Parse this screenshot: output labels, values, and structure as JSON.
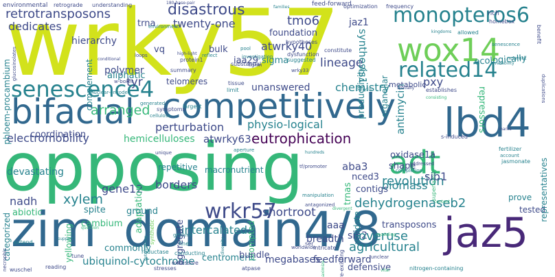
{
  "palette": {
    "c1": "#440154",
    "c2": "#482878",
    "c3": "#3e4a89",
    "c4": "#31688e",
    "c5": "#26828e",
    "c6": "#1f9e89",
    "c7": "#35b779",
    "c8": "#6ece58",
    "c9": "#b5de2b",
    "c10": "#d2e21b"
  },
  "words": [
    {
      "text": "wrky57",
      "color": "#d2e21b"
    },
    {
      "text": "opposing",
      "color": "#35b779"
    },
    {
      "text": "zim",
      "color": "#31688e"
    },
    {
      "text": "domain4/8",
      "color": "#31688e"
    },
    {
      "text": "competitively",
      "color": "#31688e"
    },
    {
      "text": "bifacial",
      "color": "#31688e"
    },
    {
      "text": "jaz5",
      "color": "#482878"
    },
    {
      "text": "lbd4",
      "color": "#31688e"
    },
    {
      "text": "wox14",
      "color": "#6ece58"
    },
    {
      "text": "adt",
      "color": "#35b779"
    },
    {
      "text": "monopteros6",
      "color": "#26828e"
    },
    {
      "text": "related14",
      "color": "#26828e"
    },
    {
      "text": "senescence4",
      "color": "#26828e"
    },
    {
      "text": "wrkr57",
      "color": "#3e4a89"
    },
    {
      "text": "retrotransposons",
      "color": "#3e4a89"
    },
    {
      "text": "disastrous",
      "color": "#3e4a89"
    },
    {
      "text": "twenty-one",
      "color": "#3e4a89"
    },
    {
      "text": "dedicates",
      "color": "#3e4a89"
    },
    {
      "text": "tmo6",
      "color": "#3e4a89"
    },
    {
      "text": "ecologically",
      "color": "#26828e"
    },
    {
      "text": "atwrky40",
      "color": "#3e4a89"
    },
    {
      "text": "lineage",
      "color": "#3e4a89"
    },
    {
      "text": "pxy",
      "color": "#3e4a89"
    },
    {
      "text": "chemistry",
      "color": "#26828e"
    },
    {
      "text": "eutrophication",
      "color": "#440154"
    },
    {
      "text": "atwrky63",
      "color": "#3e4a89"
    },
    {
      "text": "perturbation",
      "color": "#3e4a89"
    },
    {
      "text": "physio-logical",
      "color": "#26828e"
    },
    {
      "text": "unanswered",
      "color": "#3e4a89"
    },
    {
      "text": "hemicelluloses",
      "color": "#35b779"
    },
    {
      "text": "electromobility",
      "color": "#3e4a89"
    },
    {
      "text": "arranged",
      "color": "#35b779"
    },
    {
      "text": "revolution",
      "color": "#26828e"
    },
    {
      "text": "biomass",
      "color": "#26828e"
    },
    {
      "text": "dehydrogenaseb2",
      "color": "#26828e"
    },
    {
      "text": "sib1",
      "color": "#3e4a89"
    },
    {
      "text": "sib2",
      "color": "#3e4a89"
    },
    {
      "text": "shortroot",
      "color": "#3e4a89"
    },
    {
      "text": "intercalated",
      "color": "#26828e"
    },
    {
      "text": "overuse",
      "color": "#26828e"
    },
    {
      "text": "agricultural",
      "color": "#26828e"
    },
    {
      "text": "transposons",
      "color": "#3e4a89"
    },
    {
      "text": "feedforward",
      "color": "#3e4a89"
    },
    {
      "text": "megabases",
      "color": "#3e4a89"
    },
    {
      "text": "defensive",
      "color": "#3e4a89"
    },
    {
      "text": "ubiquinol-cytochrome",
      "color": "#26828e"
    },
    {
      "text": "xylem",
      "color": "#26828e"
    },
    {
      "text": "gene12",
      "color": "#3e4a89"
    },
    {
      "text": "nadh",
      "color": "#3e4a89"
    },
    {
      "text": "borders",
      "color": "#3e4a89"
    },
    {
      "text": "devastating",
      "color": "#26828e"
    },
    {
      "text": "coordination",
      "color": "#3e4a89"
    },
    {
      "text": "hierarchy",
      "color": "#3e4a89"
    },
    {
      "text": "tyr",
      "color": "#3e4a89"
    },
    {
      "text": "polymer",
      "color": "#3e4a89"
    },
    {
      "text": "aliphatic",
      "color": "#26828e"
    },
    {
      "text": "sigma",
      "color": "#26828e"
    },
    {
      "text": "iaa29",
      "color": "#3e4a89"
    },
    {
      "text": "foundation",
      "color": "#3e4a89"
    },
    {
      "text": "bulk",
      "color": "#3e4a89"
    },
    {
      "text": "vq",
      "color": "#3e4a89"
    },
    {
      "text": "trna",
      "color": "#3e4a89"
    },
    {
      "text": "jaz1",
      "color": "#3e4a89"
    },
    {
      "text": "synthesis1",
      "color": "#26828e"
    },
    {
      "text": "antimycin",
      "color": "#26828e"
    },
    {
      "text": "repressors",
      "color": "#35b779"
    },
    {
      "text": "productivity",
      "color": "#26828e"
    },
    {
      "text": "organellar",
      "color": "#26828e"
    },
    {
      "text": "metabolic",
      "color": "#3e4a89"
    },
    {
      "text": "phloem-procambium",
      "color": "#26828e"
    },
    {
      "text": "complement",
      "color": "#26828e"
    },
    {
      "text": "telomeres",
      "color": "#3e4a89"
    },
    {
      "text": "repetitive",
      "color": "#26828e"
    },
    {
      "text": "shape",
      "color": "#3e4a89"
    },
    {
      "text": "oxidase1a",
      "color": "#3e4a89"
    },
    {
      "text": "contigs",
      "color": "#3e4a89"
    },
    {
      "text": "aba3",
      "color": "#3e4a89"
    },
    {
      "text": "nced3",
      "color": "#3e4a89"
    },
    {
      "text": "trnas",
      "color": "#35b779"
    },
    {
      "text": "aggregate",
      "color": "#3e4a89"
    },
    {
      "text": "validate",
      "color": "#26828e"
    },
    {
      "text": "prompted",
      "color": "#35b779"
    },
    {
      "text": "macronutrient",
      "color": "#26828e"
    },
    {
      "text": "cambium",
      "color": "#35b779"
    },
    {
      "text": "adaptation",
      "color": "#35b779"
    },
    {
      "text": "abiotic",
      "color": "#35b779"
    },
    {
      "text": "spite",
      "color": "#26828e"
    },
    {
      "text": "ground",
      "color": "#26828e"
    },
    {
      "text": "yellowing",
      "color": "#35b779"
    },
    {
      "text": "categorized",
      "color": "#26828e"
    },
    {
      "text": "breadth",
      "color": "#3e4a89"
    },
    {
      "text": "aaa",
      "color": "#3e4a89"
    },
    {
      "text": "centromeric",
      "color": "#26828e"
    },
    {
      "text": "bundle",
      "color": "#3e4a89"
    },
    {
      "text": "commonly",
      "color": "#26828e"
    },
    {
      "text": "tested",
      "color": "#3e4a89"
    },
    {
      "text": "prove",
      "color": "#26828e"
    },
    {
      "text": "representatives",
      "color": "#26828e"
    },
    {
      "text": "environmental",
      "color": "#3e4a89"
    },
    {
      "text": "retrograde",
      "color": "#3e4a89"
    },
    {
      "text": "understanding",
      "color": "#3e4a89"
    },
    {
      "text": "feed-forward",
      "color": "#3e4a89"
    },
    {
      "text": "optimization",
      "color": "#3e4a89"
    },
    {
      "text": "frequency",
      "color": "#3e4a89"
    },
    {
      "text": "families",
      "color": "#26828e"
    },
    {
      "text": "rich",
      "color": "#3e4a89"
    },
    {
      "text": "homebox",
      "color": "#3e4a89"
    },
    {
      "text": "benefit",
      "color": "#3e4a89"
    },
    {
      "text": "allowed",
      "color": "#26828e"
    },
    {
      "text": "kingdoms",
      "color": "#26828e"
    },
    {
      "text": "network",
      "color": "#26828e"
    },
    {
      "text": "senescence",
      "color": "#26828e"
    },
    {
      "text": "environment",
      "color": "#26828e"
    },
    {
      "text": "lignin",
      "color": "#3e4a89"
    },
    {
      "text": "pool",
      "color": "#26828e"
    },
    {
      "text": "reflect",
      "color": "#26828e"
    },
    {
      "text": "investigation",
      "color": "#26828e"
    },
    {
      "text": "dysfunction",
      "color": "#3e4a89"
    },
    {
      "text": "constitute",
      "color": "#3e4a89"
    },
    {
      "text": "suggested",
      "color": "#26828e"
    },
    {
      "text": "hypotheses",
      "color": "#3e4a89"
    },
    {
      "text": "substantial",
      "color": "#3e4a89"
    },
    {
      "text": "protein1",
      "color": "#3e4a89"
    },
    {
      "text": "wrky33",
      "color": "#3e4a89"
    },
    {
      "text": "high-light",
      "color": "#3e4a89"
    },
    {
      "text": "summary",
      "color": "#3e4a89"
    },
    {
      "text": "tissue",
      "color": "#3e4a89"
    },
    {
      "text": "limit",
      "color": "#26828e"
    },
    {
      "text": "largest",
      "color": "#26828e"
    },
    {
      "text": "w-boxes",
      "color": "#3e4a89"
    },
    {
      "text": "nuclear-encoded",
      "color": "#26828e"
    },
    {
      "text": "generated",
      "color": "#26828e"
    },
    {
      "text": "symptoms",
      "color": "#3e4a89"
    },
    {
      "text": "cellulose",
      "color": "#26828e"
    },
    {
      "text": "conditional",
      "color": "#3e4a89"
    },
    {
      "text": "loops",
      "color": "#3e4a89"
    },
    {
      "text": "glucosinolates",
      "color": "#3e4a89"
    },
    {
      "text": "180-base-pair",
      "color": "#3e4a89"
    },
    {
      "text": "establishes",
      "color": "#3e4a89"
    },
    {
      "text": "duplications",
      "color": "#3e4a89"
    },
    {
      "text": "spatially",
      "color": "#3e4a89"
    },
    {
      "text": "botrytis",
      "color": "#26828e"
    },
    {
      "text": "fertilizer",
      "color": "#26828e"
    },
    {
      "text": "account",
      "color": "#26828e"
    },
    {
      "text": "addressed",
      "color": "#3e4a89"
    },
    {
      "text": "completion",
      "color": "#26828e"
    },
    {
      "text": "unique",
      "color": "#3e4a89"
    },
    {
      "text": "aperture",
      "color": "#26828e"
    },
    {
      "text": "hundreds",
      "color": "#26828e"
    },
    {
      "text": "tf/promoter",
      "color": "#3e4a89"
    },
    {
      "text": "manipulation",
      "color": "#26828e"
    },
    {
      "text": "antagonized",
      "color": "#3e4a89"
    },
    {
      "text": "divergent",
      "color": "#35b779"
    },
    {
      "text": "code",
      "color": "#35b779"
    },
    {
      "text": "worldwide",
      "color": "#3e4a89"
    },
    {
      "text": "intricate",
      "color": "#3e4a89"
    },
    {
      "text": "pre-existing",
      "color": "#3e4a89"
    },
    {
      "text": "ser",
      "color": "#3e4a89"
    },
    {
      "text": "unclear",
      "color": "#3e4a89"
    },
    {
      "text": "atpase",
      "color": "#3e4a89"
    },
    {
      "text": "stresses",
      "color": "#3e4a89"
    },
    {
      "text": "nitrogen-containing",
      "color": "#26828e"
    },
    {
      "text": "excessive",
      "color": "#3e4a89"
    },
    {
      "text": "reductase",
      "color": "#26828e"
    },
    {
      "text": "conducting",
      "color": "#26828e"
    },
    {
      "text": "fine",
      "color": "#26828e"
    },
    {
      "text": "tune",
      "color": "#3e4a89"
    },
    {
      "text": "reading",
      "color": "#3e4a89"
    },
    {
      "text": "wuschel",
      "color": "#3e4a89"
    },
    {
      "text": "necrophic",
      "color": "#3e4a89"
    },
    {
      "text": "extend",
      "color": "#26828e"
    },
    {
      "text": "support",
      "color": "#26828e"
    },
    {
      "text": "diversity",
      "color": "#26828e"
    },
    {
      "text": "determining",
      "color": "#26828e"
    },
    {
      "text": "genome",
      "color": "#26828e"
    },
    {
      "text": "synthetic",
      "color": "#6ece58"
    },
    {
      "text": "superfamily",
      "color": "#35b779"
    },
    {
      "text": "jasmonate",
      "color": "#26828e"
    },
    {
      "text": "marks",
      "color": "#3e4a89"
    },
    {
      "text": "availability",
      "color": "#26828e"
    },
    {
      "text": "consisting",
      "color": "#35b779"
    },
    {
      "text": "maximize",
      "color": "#35b779"
    },
    {
      "text": "modeling",
      "color": "#35b779"
    },
    {
      "text": "question",
      "color": "#35b779"
    },
    {
      "text": "vital",
      "color": "#35b779"
    },
    {
      "text": "content",
      "color": "#35b779"
    },
    {
      "text": "s-induced",
      "color": "#3e4a89"
    }
  ]
}
